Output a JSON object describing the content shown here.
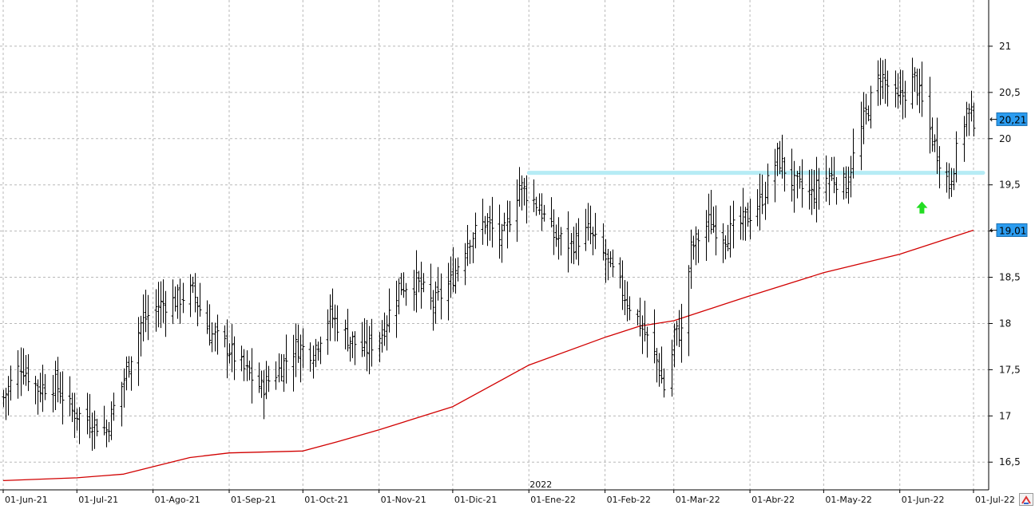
{
  "chart_data": {
    "type": "ohlc",
    "title": "",
    "xlabel": "",
    "ylabel": "",
    "ylim": [
      16.2,
      21.5
    ],
    "y_ticks": [
      16.5,
      17,
      17.5,
      18,
      18.5,
      19,
      19.5,
      20,
      20.5,
      21
    ],
    "y_tick_labels": [
      "16,5",
      "17",
      "17,5",
      "18",
      "18,5",
      "19",
      "19,5",
      "20",
      "20,5",
      "21"
    ],
    "x_range": [
      "2021-06-01",
      "2022-07-01"
    ],
    "x_ticks": [
      {
        "date": "2021-06-01",
        "label": "01-Jun-21"
      },
      {
        "date": "2021-07-01",
        "label": "01-Jul-21"
      },
      {
        "date": "2021-08-01",
        "label": "01-Ago-21"
      },
      {
        "date": "2021-09-01",
        "label": "01-Sep-21"
      },
      {
        "date": "2021-10-01",
        "label": "01-Oct-21"
      },
      {
        "date": "2021-11-01",
        "label": "01-Nov-21"
      },
      {
        "date": "2021-12-01",
        "label": "01-Dic-21"
      },
      {
        "date": "2022-01-01",
        "label": "01-Ene-22"
      },
      {
        "date": "2022-02-01",
        "label": "01-Feb-22"
      },
      {
        "date": "2022-03-01",
        "label": "01-Mar-22"
      },
      {
        "date": "2022-04-01",
        "label": "01-Abr-22"
      },
      {
        "date": "2022-05-01",
        "label": "01-May-22"
      },
      {
        "date": "2022-06-01",
        "label": "01-Jun-22"
      },
      {
        "date": "2022-07-01",
        "label": "01-Jul-22"
      }
    ],
    "year_marker": {
      "date": "2022-01-01",
      "label": "2022"
    },
    "grid": true,
    "price_anchors": [
      [
        "2021-06-01",
        17.2
      ],
      [
        "2021-06-08",
        17.55
      ],
      [
        "2021-06-15",
        17.3
      ],
      [
        "2021-06-22",
        17.35
      ],
      [
        "2021-06-29",
        17.05
      ],
      [
        "2021-07-06",
        16.95
      ],
      [
        "2021-07-13",
        16.85
      ],
      [
        "2021-07-20",
        17.4
      ],
      [
        "2021-07-27",
        18.0
      ],
      [
        "2021-08-03",
        18.2
      ],
      [
        "2021-08-10",
        18.25
      ],
      [
        "2021-08-17",
        18.35
      ],
      [
        "2021-08-24",
        17.9
      ],
      [
        "2021-08-31",
        17.75
      ],
      [
        "2021-09-07",
        17.5
      ],
      [
        "2021-09-14",
        17.3
      ],
      [
        "2021-09-21",
        17.5
      ],
      [
        "2021-09-28",
        17.75
      ],
      [
        "2021-10-05",
        17.7
      ],
      [
        "2021-10-12",
        18.1
      ],
      [
        "2021-10-19",
        17.85
      ],
      [
        "2021-10-26",
        17.7
      ],
      [
        "2021-11-02",
        17.9
      ],
      [
        "2021-11-09",
        18.4
      ],
      [
        "2021-11-16",
        18.45
      ],
      [
        "2021-11-23",
        18.2
      ],
      [
        "2021-11-30",
        18.45
      ],
      [
        "2021-12-07",
        18.9
      ],
      [
        "2021-12-14",
        19.1
      ],
      [
        "2021-12-21",
        18.9
      ],
      [
        "2021-12-28",
        19.5
      ],
      [
        "2022-01-04",
        19.3
      ],
      [
        "2022-01-11",
        18.95
      ],
      [
        "2022-01-18",
        18.85
      ],
      [
        "2022-01-25",
        19.0
      ],
      [
        "2022-02-01",
        18.7
      ],
      [
        "2022-02-08",
        18.35
      ],
      [
        "2022-02-15",
        18.0
      ],
      [
        "2022-02-22",
        17.6
      ],
      [
        "2022-02-26",
        17.2
      ],
      [
        "2022-03-01",
        17.9
      ],
      [
        "2022-03-04",
        17.9
      ],
      [
        "2022-03-08",
        18.8
      ],
      [
        "2022-03-15",
        19.1
      ],
      [
        "2022-03-22",
        18.95
      ],
      [
        "2022-03-29",
        19.1
      ],
      [
        "2022-04-05",
        19.3
      ],
      [
        "2022-04-12",
        19.8
      ],
      [
        "2022-04-19",
        19.5
      ],
      [
        "2022-04-26",
        19.4
      ],
      [
        "2022-05-03",
        19.6
      ],
      [
        "2022-05-10",
        19.5
      ],
      [
        "2022-05-17",
        20.2
      ],
      [
        "2022-05-24",
        20.7
      ],
      [
        "2022-05-31",
        20.4
      ],
      [
        "2022-06-07",
        20.65
      ],
      [
        "2022-06-14",
        20.0
      ],
      [
        "2022-06-21",
        19.5
      ],
      [
        "2022-06-28",
        20.3
      ],
      [
        "2022-07-01",
        20.21
      ]
    ],
    "moving_average": {
      "color": "#d10000",
      "anchors": [
        [
          "2021-06-01",
          16.3
        ],
        [
          "2021-07-01",
          16.33
        ],
        [
          "2021-07-20",
          16.37
        ],
        [
          "2021-08-01",
          16.45
        ],
        [
          "2021-08-16",
          16.55
        ],
        [
          "2021-09-01",
          16.6
        ],
        [
          "2021-10-01",
          16.62
        ],
        [
          "2021-10-15",
          16.72
        ],
        [
          "2021-11-01",
          16.85
        ],
        [
          "2021-12-01",
          17.1
        ],
        [
          "2022-01-01",
          17.55
        ],
        [
          "2022-02-01",
          17.85
        ],
        [
          "2022-02-15",
          17.97
        ],
        [
          "2022-03-01",
          18.03
        ],
        [
          "2022-04-01",
          18.3
        ],
        [
          "2022-05-01",
          18.55
        ],
        [
          "2022-06-01",
          18.75
        ],
        [
          "2022-07-01",
          19.01
        ]
      ]
    },
    "horizontal_line": {
      "value": 19.63,
      "from": "2022-01-01",
      "to": "2022-07-01",
      "color": "#b6ecf5"
    },
    "annotation_arrow": {
      "date": "2022-06-10",
      "value": 19.25,
      "color": "#22dd22",
      "direction": "up"
    },
    "last_price": {
      "value": 20.21,
      "label": "20,21",
      "color": "#2b9cf0"
    },
    "ma_last": {
      "value": 19.01,
      "label": "19,01",
      "color": "#2b9cf0"
    }
  }
}
